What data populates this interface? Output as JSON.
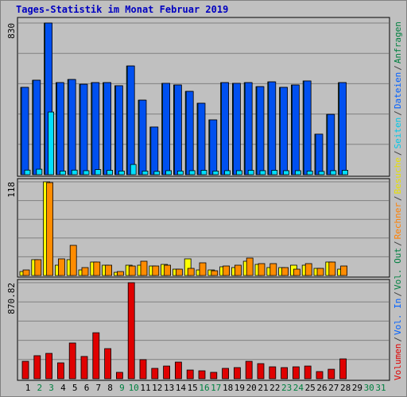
{
  "title": "Tages-Statistik im Monat Februar 2019",
  "legend": [
    {
      "label": "Volumen",
      "color": "#e00000"
    },
    {
      "label": "/",
      "color": "#404040"
    },
    {
      "label": "Vol. In",
      "color": "#0060ff"
    },
    {
      "label": "/",
      "color": "#404040"
    },
    {
      "label": "Vol. Out",
      "color": "#008040"
    },
    {
      "label": "/",
      "color": "#404040"
    },
    {
      "label": "Rechner",
      "color": "#ff8000"
    },
    {
      "label": "/",
      "color": "#404040"
    },
    {
      "label": "Besuche",
      "color": "#e8e000"
    },
    {
      "label": "/",
      "color": "#404040"
    },
    {
      "label": "Seiten",
      "color": "#00c8e8"
    },
    {
      "label": "/",
      "color": "#404040"
    },
    {
      "label": "Dateien",
      "color": "#0060ff"
    },
    {
      "label": "/",
      "color": "#404040"
    },
    {
      "label": "Anfragen",
      "color": "#008040"
    }
  ],
  "categories": [
    "1",
    "2",
    "3",
    "4",
    "5",
    "6",
    "7",
    "8",
    "9",
    "10",
    "11",
    "12",
    "13",
    "14",
    "15",
    "16",
    "17",
    "18",
    "19",
    "20",
    "21",
    "22",
    "23",
    "24",
    "25",
    "26",
    "27",
    "28",
    "29",
    "30",
    "31"
  ],
  "weekend_color": "#008040",
  "weekend": [
    false,
    true,
    true,
    false,
    false,
    false,
    false,
    false,
    true,
    true,
    false,
    false,
    false,
    false,
    false,
    true,
    true,
    false,
    false,
    false,
    false,
    false,
    true,
    true,
    false,
    false,
    false,
    false,
    false,
    true,
    true
  ],
  "chart_data": [
    {
      "type": "bar",
      "ylim": [
        0,
        830
      ],
      "yticks": [
        830
      ],
      "series": [
        {
          "name": "Anfragen",
          "color": "#00805c",
          "values": [
            478,
            517,
            830,
            504,
            521,
            495,
            504,
            504,
            487,
            595,
            408,
            261,
            500,
            491,
            456,
            391,
            300,
            504,
            500,
            504,
            482,
            508,
            478,
            491,
            513,
            222,
            330,
            504,
            null,
            null,
            null
          ]
        },
        {
          "name": "Dateien",
          "color": "#0050f0",
          "values": [
            478,
            517,
            830,
            504,
            521,
            495,
            504,
            504,
            487,
            595,
            408,
            261,
            500,
            491,
            456,
            391,
            300,
            504,
            500,
            504,
            482,
            508,
            478,
            491,
            513,
            222,
            330,
            504,
            null,
            null,
            null
          ]
        },
        {
          "name": "Seiten",
          "color": "#00e0ff",
          "values": [
            25,
            30,
            343,
            20,
            25,
            22,
            28,
            24,
            20,
            56,
            20,
            18,
            22,
            20,
            22,
            24,
            20,
            22,
            22,
            24,
            22,
            24,
            22,
            22,
            20,
            18,
            22,
            24,
            null,
            null,
            null
          ]
        }
      ]
    },
    {
      "type": "bar",
      "ylim": [
        0,
        118
      ],
      "yticks": [
        118
      ],
      "series": [
        {
          "name": "Besuche",
          "color": "#ffff00",
          "values": [
            5,
            20,
            118,
            13,
            20,
            7,
            17,
            13,
            4,
            13,
            13,
            12,
            14,
            8,
            21,
            7,
            7,
            11,
            10,
            18,
            14,
            10,
            10,
            13,
            13,
            9,
            17,
            8,
            null,
            null,
            null
          ]
        },
        {
          "name": "Rechner",
          "color": "#ff8c00",
          "values": [
            7,
            20,
            117,
            21,
            38,
            10,
            17,
            13,
            5,
            12,
            18,
            12,
            13,
            8,
            9,
            16,
            6,
            12,
            13,
            22,
            15,
            15,
            10,
            8,
            15,
            9,
            17,
            12,
            null,
            null,
            null
          ]
        }
      ]
    },
    {
      "type": "bar",
      "ylim": [
        0,
        870.82
      ],
      "yticks": [
        870.82
      ],
      "series": [
        {
          "name": "Volumen",
          "color": "#e00000",
          "values": [
            158,
            209,
            230,
            144,
            324,
            202,
            417,
            273,
            58,
            870.82,
            173,
            94,
            115,
            151,
            79,
            72,
            58,
            94,
            101,
            158,
            137,
            108,
            101,
            108,
            115,
            65,
            86,
            180,
            null,
            null,
            null
          ]
        }
      ]
    }
  ]
}
